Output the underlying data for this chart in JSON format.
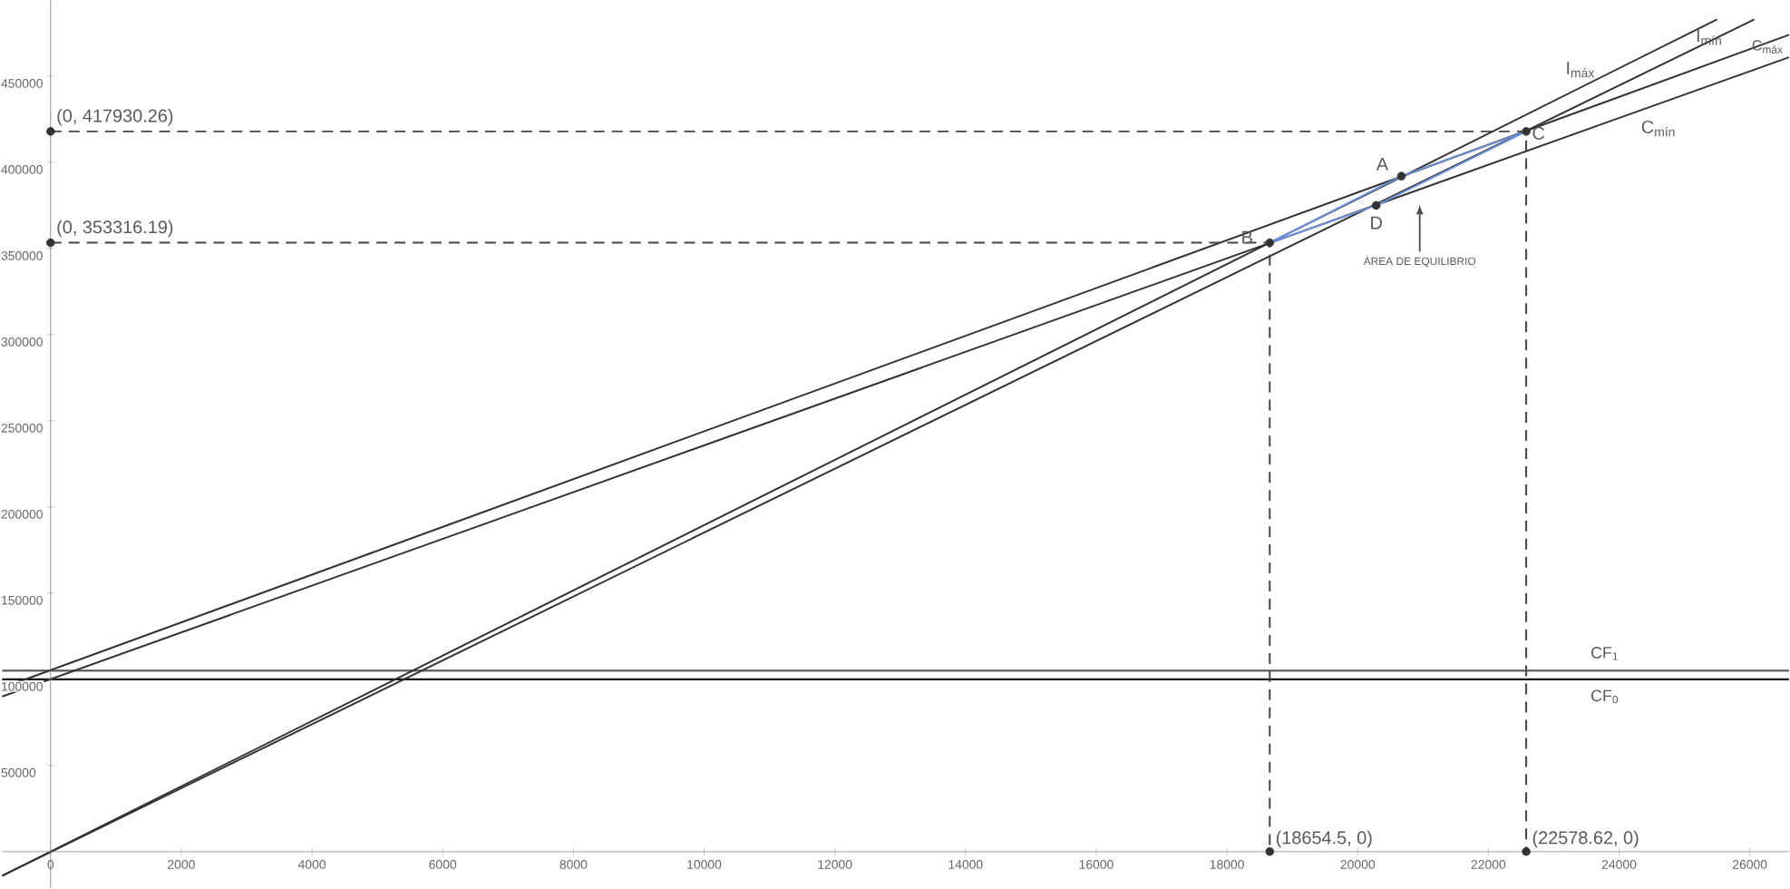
{
  "chart_data": {
    "type": "line",
    "xlim": [
      -740,
      26600
    ],
    "ylim": [
      -21000,
      494000
    ],
    "xticks": [
      0,
      2000,
      4000,
      6000,
      8000,
      10000,
      12000,
      14000,
      16000,
      18000,
      20000,
      22000,
      24000,
      26000
    ],
    "yticks": [
      50000,
      100000,
      150000,
      200000,
      250000,
      300000,
      350000,
      400000,
      450000
    ],
    "grid": false,
    "series": [
      {
        "name": "I$_{máx}$",
        "color": "#333333",
        "x": [
          -740,
          25500
        ],
        "values": [
          -14000,
          483000
        ]
      },
      {
        "name": "I$_{mín}$",
        "color": "#333333",
        "x": [
          -740,
          26070
        ],
        "values": [
          -14000,
          483000
        ]
      },
      {
        "name": "C$_{máx}$",
        "color": "#333333",
        "x": [
          -740,
          26600
        ],
        "values": [
          95000,
          474000
        ]
      },
      {
        "name": "C$_{mín}$",
        "color": "#333333",
        "x": [
          -740,
          26600
        ],
        "values": [
          90000,
          461000
        ]
      },
      {
        "color": "#7093e0",
        "x": [
          18654.5,
          20669,
          22578.62
        ],
        "values": [
          353316.19,
          392000,
          417930.26
        ]
      },
      {
        "color": "#7093e0",
        "x": [
          18654.5,
          20284,
          22578.62
        ],
        "values": [
          353316.19,
          375000,
          417930.26
        ]
      },
      {
        "color": "#444444",
        "line_style": "dashed",
        "x": [
          0,
          18654.5,
          18654.5
        ],
        "values": [
          353316.19,
          353316.19,
          0
        ]
      },
      {
        "color": "#444444",
        "line_style": "dashed",
        "x": [
          0,
          22578.62,
          22578.62
        ],
        "values": [
          417930.26,
          417930.26,
          0
        ]
      },
      {
        "type": "scatter",
        "color": "#333333",
        "x": [
          0,
          0,
          18654.5,
          22578.62,
          18654.5,
          22578.62,
          20669,
          20284
        ],
        "values": [
          417930.26,
          353316.19,
          0,
          0,
          353316.19,
          417930.26,
          392000,
          375000
        ]
      }
    ],
    "ref_lines": [
      {
        "axis": "y",
        "value": 105000,
        "label": "CF$_{1}$",
        "color": "#555555"
      },
      {
        "axis": "y",
        "value": 100000,
        "label": "CF$_{0}$",
        "color": "#111111"
      }
    ],
    "annotations": [
      {
        "text": "(0, 417930.26)",
        "x": 0,
        "y": 417930.26
      },
      {
        "text": "(0, 353316.19)",
        "x": 0,
        "y": 353316.19
      },
      {
        "text": "(18654.5, 0)",
        "x": 18654.5,
        "y": 0
      },
      {
        "text": "(22578.62, 0)",
        "x": 22578.62,
        "y": 0
      },
      {
        "text": "A",
        "x": 20669,
        "y": 392000
      },
      {
        "text": "B",
        "x": 18654.5,
        "y": 353316.19
      },
      {
        "text": "C",
        "x": 22578.62,
        "y": 417930.26
      },
      {
        "text": "D",
        "x": 20284,
        "y": 375000
      },
      {
        "text": "ÁREA DE EQUILIBRIO",
        "x": 20950,
        "y": 378700
      }
    ]
  }
}
